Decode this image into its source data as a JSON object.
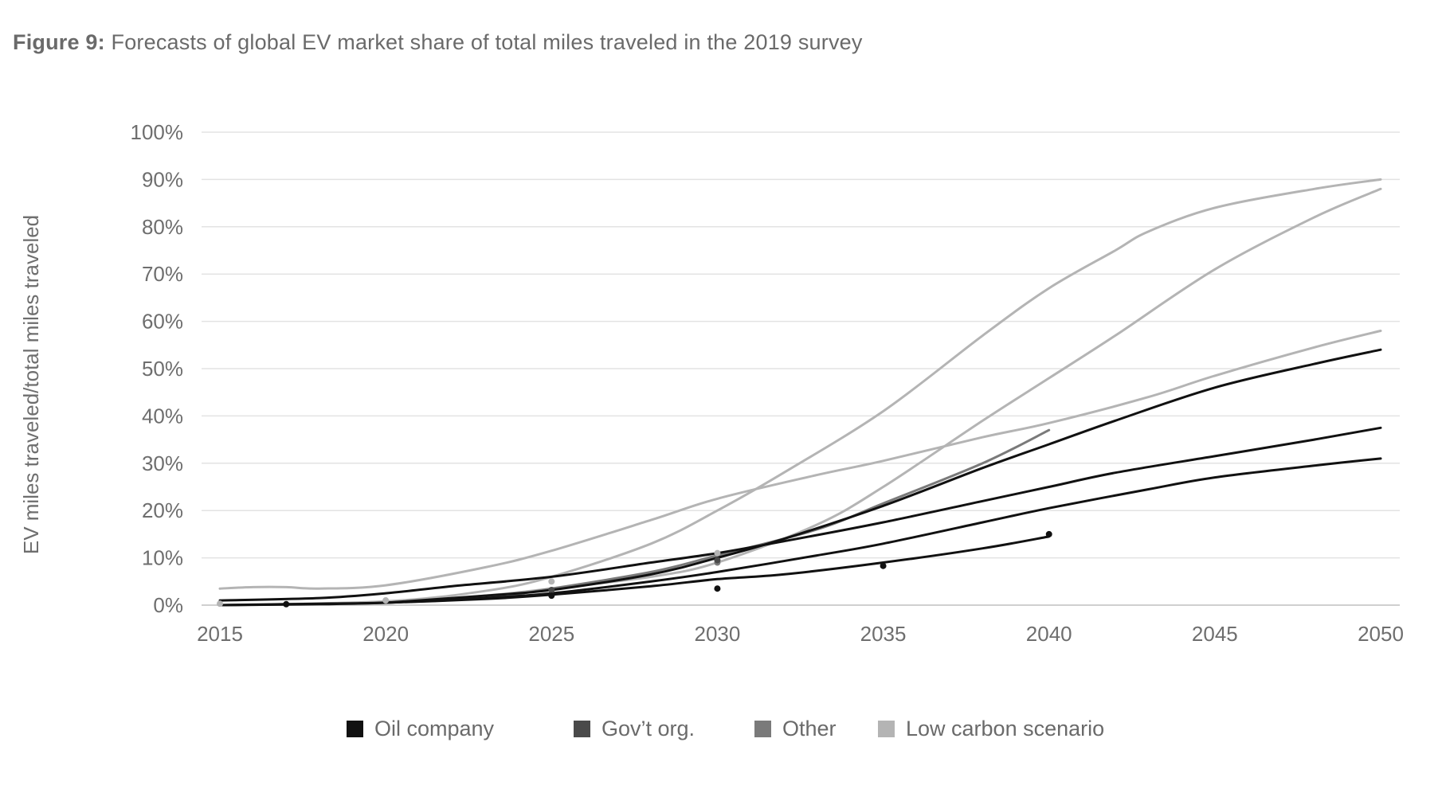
{
  "figure": {
    "label": "Figure 9:",
    "title": "Forecasts of global EV market share of total miles traveled in the 2019 survey"
  },
  "chart_data": {
    "type": "line",
    "ylabel": "EV miles traveled/total miles traveled",
    "xlabel": "",
    "xlim": [
      2015,
      2050
    ],
    "ylim": [
      0,
      100
    ],
    "x_ticks": [
      "2015",
      "2020",
      "2025",
      "2030",
      "2035",
      "2040",
      "2045",
      "2050"
    ],
    "y_ticks": [
      "0%",
      "10%",
      "20%",
      "30%",
      "40%",
      "50%",
      "60%",
      "70%",
      "80%",
      "90%",
      "100%"
    ],
    "grid": "horizontal",
    "legend": [
      {
        "name": "Oil company",
        "color": "#111111"
      },
      {
        "name": "Gov’t org.",
        "color": "#4a4a4a"
      },
      {
        "name": "Other",
        "color": "#7a7a7a"
      },
      {
        "name": "Low carbon scenario",
        "color": "#b4b4b4"
      }
    ],
    "legend_position": "bottom",
    "series": [
      {
        "group": "Oil company",
        "color": "#111111",
        "line": true,
        "points": [
          [
            2015,
            1
          ],
          [
            2018,
            1.5
          ],
          [
            2020,
            2.5
          ],
          [
            2022,
            4
          ],
          [
            2025,
            6
          ],
          [
            2028,
            9
          ],
          [
            2030,
            11
          ],
          [
            2032,
            13.5
          ],
          [
            2035,
            17.5
          ],
          [
            2038,
            22
          ],
          [
            2040,
            25
          ],
          [
            2042,
            28
          ],
          [
            2045,
            31.5
          ],
          [
            2048,
            35
          ],
          [
            2050,
            37.5
          ]
        ]
      },
      {
        "group": "Oil company",
        "color": "#111111",
        "line": true,
        "points": [
          [
            2015,
            0
          ],
          [
            2018,
            0.3
          ],
          [
            2020,
            0.5
          ],
          [
            2023,
            1.3
          ],
          [
            2025,
            2.2
          ],
          [
            2028,
            4
          ],
          [
            2030,
            5.5
          ],
          [
            2032,
            6.5
          ],
          [
            2035,
            9
          ],
          [
            2038,
            12
          ],
          [
            2040,
            14.5
          ]
        ]
      },
      {
        "group": "Oil company",
        "color": "#111111",
        "line": true,
        "points": [
          [
            2015,
            0
          ],
          [
            2018,
            0.2
          ],
          [
            2020,
            0.5
          ],
          [
            2023,
            1.5
          ],
          [
            2025,
            2.5
          ],
          [
            2028,
            5
          ],
          [
            2030,
            7
          ],
          [
            2033,
            10.5
          ],
          [
            2035,
            13
          ],
          [
            2038,
            17.5
          ],
          [
            2040,
            20.5
          ],
          [
            2043,
            24.5
          ],
          [
            2045,
            27
          ],
          [
            2048,
            29.5
          ],
          [
            2050,
            31
          ]
        ]
      },
      {
        "group": "Oil company",
        "color": "#111111",
        "line": true,
        "points": [
          [
            2020,
            0.5
          ],
          [
            2023,
            2
          ],
          [
            2025,
            3.2
          ],
          [
            2028,
            6.5
          ],
          [
            2030,
            10
          ],
          [
            2032,
            14
          ],
          [
            2035,
            21
          ],
          [
            2038,
            29
          ],
          [
            2040,
            34
          ],
          [
            2042,
            39
          ],
          [
            2045,
            46
          ],
          [
            2048,
            51
          ],
          [
            2050,
            54
          ]
        ]
      },
      {
        "group": "Oil company",
        "color": "#111111",
        "line": false,
        "points": [
          [
            2017,
            0.2
          ],
          [
            2025,
            2
          ],
          [
            2030,
            3.5
          ],
          [
            2035,
            8.3
          ],
          [
            2040,
            15
          ]
        ]
      },
      {
        "group": "Gov’t org.",
        "color": "#4a4a4a",
        "line": false,
        "points": [
          [
            2025,
            3.2
          ],
          [
            2030,
            9.5
          ]
        ]
      },
      {
        "group": "Other",
        "color": "#7a7a7a",
        "line": true,
        "points": [
          [
            2020,
            0.5
          ],
          [
            2023,
            1.5
          ],
          [
            2025,
            3.5
          ],
          [
            2028,
            7
          ],
          [
            2030,
            10.5
          ],
          [
            2033,
            16
          ],
          [
            2035,
            21.5
          ],
          [
            2038,
            30
          ],
          [
            2040,
            37
          ]
        ]
      },
      {
        "group": "Other",
        "color": "#7a7a7a",
        "line": false,
        "points": [
          [
            2030,
            9
          ]
        ]
      },
      {
        "group": "Low carbon scenario",
        "color": "#b4b4b4",
        "line": true,
        "points": [
          [
            2015,
            3.5
          ],
          [
            2016,
            3.8
          ],
          [
            2017,
            3.8
          ],
          [
            2018,
            3.5
          ],
          [
            2020,
            4.2
          ],
          [
            2023,
            8
          ],
          [
            2025,
            11.5
          ],
          [
            2028,
            18
          ],
          [
            2030,
            22.5
          ],
          [
            2033,
            27.5
          ],
          [
            2035,
            30.5
          ],
          [
            2038,
            35.5
          ],
          [
            2040,
            38.5
          ],
          [
            2043,
            44
          ],
          [
            2045,
            48.5
          ],
          [
            2048,
            54.5
          ],
          [
            2050,
            58
          ]
        ]
      },
      {
        "group": "Low carbon scenario",
        "color": "#b4b4b4",
        "line": true,
        "points": [
          [
            2015,
            0
          ],
          [
            2020,
            0.8
          ],
          [
            2023,
            3
          ],
          [
            2025,
            6
          ],
          [
            2028,
            13
          ],
          [
            2030,
            20
          ],
          [
            2032,
            28
          ],
          [
            2035,
            41
          ],
          [
            2038,
            57
          ],
          [
            2040,
            67
          ],
          [
            2042,
            75
          ],
          [
            2043,
            79
          ],
          [
            2045,
            84
          ],
          [
            2048,
            88
          ],
          [
            2050,
            90
          ]
        ]
      },
      {
        "group": "Low carbon scenario",
        "color": "#b4b4b4",
        "line": true,
        "points": [
          [
            2015,
            0
          ],
          [
            2020,
            0.5
          ],
          [
            2023,
            2
          ],
          [
            2025,
            3.5
          ],
          [
            2028,
            6
          ],
          [
            2030,
            9
          ],
          [
            2033,
            17
          ],
          [
            2035,
            25
          ],
          [
            2038,
            39
          ],
          [
            2040,
            48
          ],
          [
            2042,
            57
          ],
          [
            2045,
            71
          ],
          [
            2048,
            82
          ],
          [
            2050,
            88
          ]
        ]
      },
      {
        "group": "Low carbon scenario",
        "color": "#b4b4b4",
        "line": false,
        "points": [
          [
            2015,
            0.3
          ],
          [
            2020,
            1
          ],
          [
            2025,
            5
          ],
          [
            2030,
            11
          ]
        ]
      }
    ]
  }
}
